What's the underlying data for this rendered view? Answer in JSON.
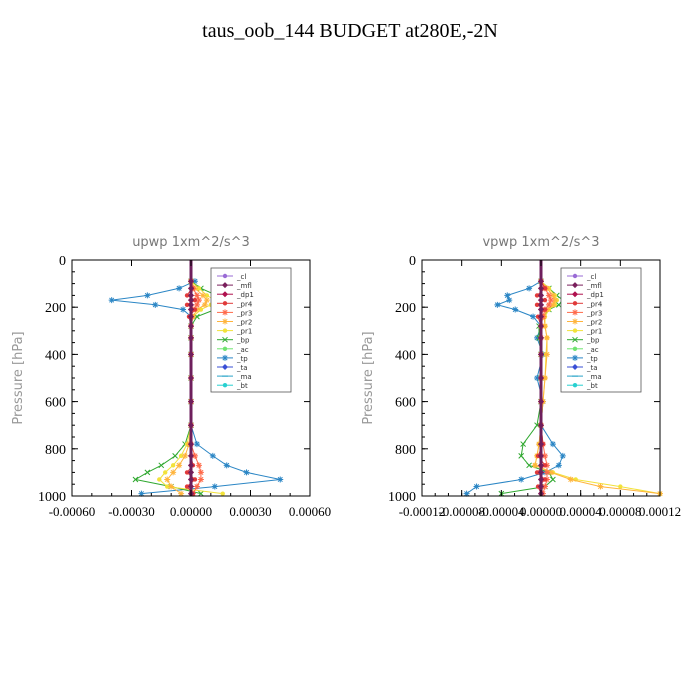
{
  "figure": {
    "title": "taus_oob_144  BUDGET at280E,-2N"
  },
  "legend_entries": [
    {
      "name": "_cl",
      "color": "#9a6bd6",
      "marker": "circle"
    },
    {
      "name": "_mfl",
      "color": "#7a1f5c",
      "marker": "diamond"
    },
    {
      "name": "_dp1",
      "color": "#b0104e",
      "marker": "diamond"
    },
    {
      "name": "_pr4",
      "color": "#e03a3a",
      "marker": "circle"
    },
    {
      "name": "_pr3",
      "color": "#ff6a4a",
      "marker": "star"
    },
    {
      "name": "_pr2",
      "color": "#ffb43c",
      "marker": "star"
    },
    {
      "name": "_pr1",
      "color": "#f2e23a",
      "marker": "circle"
    },
    {
      "name": "_bp",
      "color": "#2fa82f",
      "marker": "cross"
    },
    {
      "name": "_ac",
      "color": "#6fe46f",
      "marker": "circle"
    },
    {
      "name": "_tp",
      "color": "#2b86c5",
      "marker": "star"
    },
    {
      "name": "_ta",
      "color": "#3a4fd6",
      "marker": "diamond"
    },
    {
      "name": "_ma",
      "color": "#2aa4c8",
      "marker": "dash"
    },
    {
      "name": "_bt",
      "color": "#28d0d0",
      "marker": "circle"
    }
  ],
  "chart_data": [
    {
      "type": "line",
      "title": "upwp   1xm^2/s^3",
      "ylabel": "Pressure [hPa]",
      "xlabel": "",
      "xlim": [
        -0.0006,
        0.0006
      ],
      "ylim": [
        1000,
        0
      ],
      "xticks": [
        "-0.00060",
        "-0.00030",
        "0.00000",
        "0.00030",
        "0.00060"
      ],
      "yticks": [
        "0",
        "200",
        "400",
        "600",
        "800",
        "1000"
      ],
      "legend_position": "top-right",
      "y_levels": [
        90,
        120,
        150,
        170,
        190,
        210,
        240,
        280,
        330,
        400,
        500,
        600,
        700,
        780,
        830,
        870,
        900,
        930,
        960,
        990
      ],
      "series": [
        {
          "name": "_cl",
          "values": [
            0,
            0,
            0,
            0,
            0,
            0,
            0,
            0,
            0,
            0,
            0,
            0,
            0,
            0,
            0,
            0,
            0,
            0,
            0,
            0
          ]
        },
        {
          "name": "_mfl",
          "values": [
            0,
            0,
            0,
            0,
            0,
            0,
            0,
            0,
            0,
            0,
            0,
            0,
            0,
            0,
            0,
            0,
            0,
            0,
            0,
            0
          ]
        },
        {
          "name": "_dp1",
          "values": [
            0,
            0,
            0,
            0,
            0,
            0,
            0,
            0,
            0,
            0,
            0,
            0,
            0,
            0,
            0,
            0,
            0,
            0,
            0,
            0
          ]
        },
        {
          "name": "_pr4",
          "values": [
            0,
            5e-06,
            -2e-05,
            2e-05,
            -2e-05,
            2e-05,
            -1e-05,
            0,
            0,
            0,
            0,
            0,
            0,
            0,
            0,
            1e-05,
            -2e-05,
            2e-05,
            -2e-05,
            1e-05
          ]
        },
        {
          "name": "_pr3",
          "values": [
            0,
            1e-05,
            3e-05,
            4e-05,
            3e-05,
            1e-05,
            0,
            0,
            0,
            0,
            0,
            0,
            0,
            0,
            2e-05,
            4e-05,
            5e-05,
            5e-05,
            3e-05,
            1e-05
          ]
        },
        {
          "name": "_pr2",
          "values": [
            0,
            2e-05,
            6e-05,
            8e-05,
            7e-05,
            3e-05,
            1e-05,
            0,
            0,
            0,
            0,
            0,
            0,
            -1e-05,
            -3e-05,
            -6e-05,
            -9e-05,
            -0.00012,
            -0.0001,
            -5e-05
          ]
        },
        {
          "name": "_pr1",
          "values": [
            0,
            4e-05,
            8e-05,
            0.00012,
            0.0001,
            5e-05,
            1e-05,
            0,
            0,
            0,
            0,
            0,
            0,
            -2e-05,
            -5e-05,
            -9e-05,
            -0.00013,
            -0.00016,
            -0.00012,
            0.00016
          ]
        },
        {
          "name": "_bp",
          "values": [
            0,
            5e-05,
            0.00013,
            0.00018,
            0.0002,
            0.00012,
            3e-05,
            0,
            0,
            0,
            0,
            0,
            0,
            -3e-05,
            -8e-05,
            -0.00015,
            -0.00022,
            -0.00028,
            -0.0001,
            5e-05
          ]
        },
        {
          "name": "_ac",
          "values": [
            0,
            0,
            0,
            0,
            0,
            0,
            0,
            0,
            0,
            0,
            0,
            0,
            0,
            0,
            0,
            0,
            0,
            0,
            0,
            0
          ]
        },
        {
          "name": "_tp",
          "values": [
            2e-05,
            -6e-05,
            -0.00022,
            -0.0004,
            -0.00018,
            -4e-05,
            0,
            0,
            0,
            0,
            0,
            0,
            0,
            3e-05,
            0.00011,
            0.00018,
            0.00028,
            0.00045,
            0.00012,
            -0.00025
          ]
        },
        {
          "name": "_ta",
          "values": [
            0,
            0,
            0,
            0,
            0,
            0,
            0,
            0,
            0,
            0,
            0,
            0,
            0,
            0,
            0,
            0,
            0,
            0,
            0,
            0
          ]
        },
        {
          "name": "_ma",
          "values": [
            0,
            0,
            0,
            0,
            0,
            0,
            0,
            0,
            0,
            0,
            0,
            0,
            0,
            0,
            0,
            0,
            0,
            0,
            0,
            0
          ]
        },
        {
          "name": "_bt",
          "values": [
            0,
            0,
            0,
            0,
            0,
            0,
            0,
            0,
            0,
            0,
            0,
            0,
            0,
            0,
            0,
            0,
            0,
            0,
            0,
            0
          ]
        }
      ]
    },
    {
      "type": "line",
      "title": "vpwp   1xm^2/s^3",
      "ylabel": "Pressure [hPa]",
      "xlabel": "",
      "xlim": [
        -0.00012,
        0.00012
      ],
      "ylim": [
        1000,
        0
      ],
      "xticks": [
        "-0.00012",
        "-0.00008",
        "-0.00004",
        "0.00000",
        "0.00004",
        "0.00008",
        "0.00012"
      ],
      "yticks": [
        "0",
        "200",
        "400",
        "600",
        "800",
        "1000"
      ],
      "legend_position": "top-right",
      "y_levels": [
        90,
        120,
        150,
        170,
        190,
        210,
        240,
        280,
        330,
        400,
        500,
        600,
        700,
        780,
        830,
        870,
        900,
        930,
        960,
        990
      ],
      "series": [
        {
          "name": "_cl",
          "values": [
            0,
            0,
            0,
            0,
            0,
            0,
            0,
            0,
            0,
            0,
            0,
            0,
            0,
            0,
            0,
            0,
            0,
            0,
            0,
            0
          ]
        },
        {
          "name": "_mfl",
          "values": [
            0,
            0,
            0,
            0,
            0,
            0,
            0,
            0,
            0,
            0,
            0,
            0,
            0,
            0,
            0,
            0,
            0,
            0,
            0,
            0
          ]
        },
        {
          "name": "_dp1",
          "values": [
            0,
            0,
            0,
            0,
            0,
            0,
            0,
            0,
            0,
            0,
            0,
            0,
            0,
            0,
            0,
            0,
            0,
            0,
            0,
            0
          ]
        },
        {
          "name": "_pr4",
          "values": [
            0,
            4e-06,
            -4e-06,
            4e-06,
            -4e-06,
            4e-06,
            -3e-06,
            0,
            0,
            0,
            0,
            0,
            0,
            2e-06,
            -3e-06,
            4e-06,
            -4e-06,
            4e-06,
            -3e-06,
            0
          ]
        },
        {
          "name": "_pr3",
          "values": [
            0,
            4e-06,
            8e-06,
            1e-05,
            8e-06,
            4e-06,
            2e-06,
            0,
            0,
            0,
            0,
            0,
            0,
            2e-06,
            4e-06,
            6e-06,
            6e-06,
            6e-06,
            4e-06,
            2e-06
          ]
        },
        {
          "name": "_pr2",
          "values": [
            0,
            6e-06,
            1.2e-05,
            1.4e-05,
            1.2e-05,
            6e-06,
            3e-06,
            4e-06,
            6e-06,
            6e-06,
            4e-06,
            2e-06,
            0,
            -2e-06,
            -4e-06,
            -6e-06,
            1e-05,
            3e-05,
            6e-05,
            0.00012
          ]
        },
        {
          "name": "_pr1",
          "values": [
            0,
            8e-06,
            1.4e-05,
            1.6e-05,
            1.4e-05,
            8e-06,
            4e-06,
            4e-06,
            6e-06,
            5e-06,
            4e-06,
            2e-06,
            0,
            -2e-06,
            -4e-06,
            -6e-06,
            1.2e-05,
            3.5e-05,
            8e-05,
            0.00012
          ]
        },
        {
          "name": "_bp",
          "values": [
            0,
            8e-06,
            1.6e-05,
            2.2e-05,
            1.8e-05,
            8e-06,
            2e-06,
            -2e-06,
            -2e-06,
            0,
            0,
            0,
            -4e-06,
            -1.8e-05,
            -2e-05,
            -1.2e-05,
            8e-06,
            1.2e-05,
            4e-06,
            -4e-05
          ]
        },
        {
          "name": "_ac",
          "values": [
            0,
            0,
            0,
            0,
            0,
            0,
            0,
            0,
            0,
            0,
            0,
            0,
            0,
            0,
            0,
            0,
            0,
            0,
            0,
            0
          ]
        },
        {
          "name": "_tp",
          "values": [
            0,
            -1.2e-05,
            -3.4e-05,
            -3.2e-05,
            -4.4e-05,
            -2.6e-05,
            -8e-06,
            0,
            -4e-06,
            2e-06,
            -4e-06,
            2e-06,
            0,
            1.2e-05,
            2.2e-05,
            1.8e-05,
            4e-06,
            -2e-05,
            -6.5e-05,
            -7.5e-05
          ]
        },
        {
          "name": "_ta",
          "values": [
            0,
            0,
            0,
            0,
            0,
            0,
            0,
            0,
            0,
            0,
            0,
            0,
            0,
            0,
            0,
            0,
            0,
            0,
            0,
            0
          ]
        },
        {
          "name": "_ma",
          "values": [
            0,
            0,
            0,
            0,
            0,
            0,
            0,
            0,
            0,
            0,
            0,
            0,
            0,
            0,
            0,
            0,
            0,
            0,
            0,
            0
          ]
        },
        {
          "name": "_bt",
          "values": [
            0,
            0,
            0,
            0,
            0,
            0,
            0,
            0,
            0,
            0,
            0,
            0,
            0,
            0,
            0,
            0,
            0,
            0,
            0,
            0
          ]
        }
      ]
    }
  ]
}
